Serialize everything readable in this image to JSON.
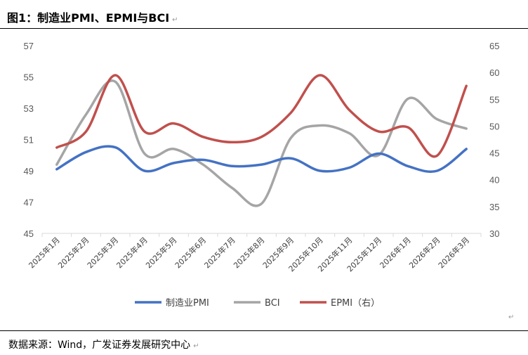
{
  "header": {
    "title": "图1：制造业PMI、EPMI与BCI",
    "mark": "↵"
  },
  "footer": {
    "source": "数据来源：Wind，广发证券发展研究中心",
    "mark": "↵"
  },
  "colors": {
    "pmi": "#4472C4",
    "bci": "#A5A5A5",
    "epmi": "#C0504D",
    "axis": "#D9D9D9"
  },
  "chart_data": {
    "type": "line",
    "title": "制造业PMI、EPMI与BCI",
    "categories": [
      "2025年1月",
      "2025年2月",
      "2025年3月",
      "2025年4月",
      "2025年5月",
      "2025年6月",
      "2025年7月",
      "2025年8月",
      "2025年9月",
      "2025年10月",
      "2025年11月",
      "2025年12月",
      "2026年1月",
      "2026年2月",
      "2026年3月"
    ],
    "left_axis": {
      "ylim": [
        45,
        57
      ],
      "ticks": [
        45,
        47,
        49,
        51,
        53,
        55,
        57
      ]
    },
    "right_axis": {
      "ylim": [
        30,
        65
      ],
      "ticks": [
        30,
        35,
        40,
        45,
        50,
        55,
        60,
        65
      ]
    },
    "series": [
      {
        "name": "制造业PMI",
        "axis": "left",
        "color": "#4472C4",
        "values": [
          49.1,
          50.2,
          50.5,
          49.0,
          49.5,
          49.7,
          49.3,
          49.4,
          49.8,
          49.0,
          49.2,
          50.1,
          49.3,
          49.0,
          50.4
        ]
      },
      {
        "name": "BCI",
        "axis": "left",
        "color": "#A5A5A5",
        "values": [
          49.4,
          52.6,
          54.7,
          50.1,
          50.4,
          49.4,
          47.9,
          46.9,
          51.1,
          51.9,
          51.4,
          50.0,
          53.6,
          52.3,
          51.7
        ]
      },
      {
        "name": "EPMI（右）",
        "axis": "right",
        "color": "#C0504D",
        "values": [
          46.0,
          49.0,
          59.5,
          49.0,
          50.5,
          48.0,
          47.0,
          48.0,
          52.5,
          59.5,
          53.0,
          49.0,
          49.8,
          44.5,
          57.5
        ]
      }
    ],
    "legend": [
      "制造业PMI",
      "BCI",
      "EPMI（右）"
    ],
    "legend_position": "bottom",
    "grid": false
  }
}
